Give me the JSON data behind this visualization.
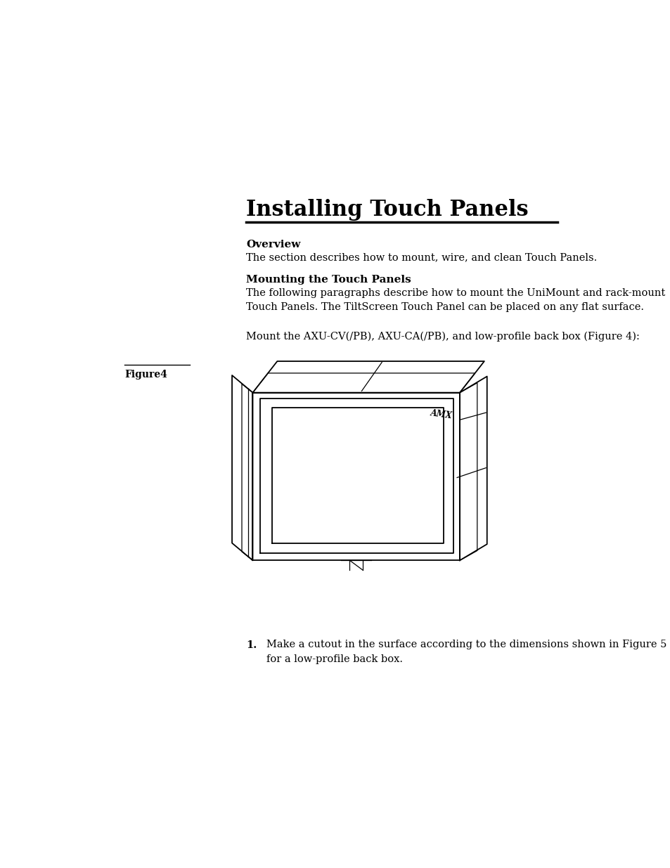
{
  "title": "Installing Touch Panels",
  "bg_color": "#ffffff",
  "text_color": "#000000",
  "title_fontsize": 22,
  "body_fontsize": 10.5,
  "bold_fontsize": 11,
  "section1_heading": "Overview",
  "section1_body": "The section describes how to mount, wire, and clean Touch Panels.",
  "section2_heading": "Mounting the Touch Panels",
  "section2_body1": "The following paragraphs describe how to mount the UniMount and rack-mount\nTouch Panels. The TiltScreen Touch Panel can be placed on any flat surface.",
  "section2_body2": "Mount the AXU-CV(/PB), AXU-CA(/PB), and low-profile back box (Figure 4):",
  "figure_label": "Figure4",
  "step1_number": "1.",
  "step1_text": "Make a cutout in the surface according to the dimensions shown in Figure 5\nfor a low-profile back box."
}
